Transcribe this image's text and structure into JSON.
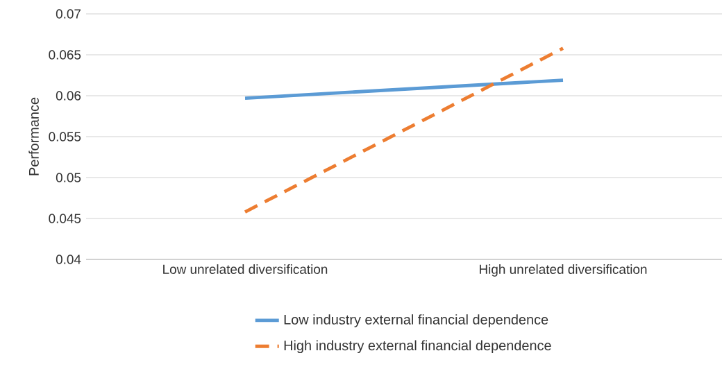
{
  "chart_data": {
    "type": "line",
    "ylabel": "Performance",
    "categories": [
      "Low unrelated diversification",
      "High unrelated diversification"
    ],
    "series": [
      {
        "name": "Low industry external financial dependence",
        "color": "#5b9bd5",
        "line_style": "solid",
        "values": [
          0.0597,
          0.0619
        ]
      },
      {
        "name": "High industry external financial dependence",
        "color": "#ed7d31",
        "line_style": "dashed",
        "values": [
          0.0458,
          0.0658
        ]
      }
    ],
    "ylim": [
      0.04,
      0.07
    ],
    "yticks": [
      0.04,
      0.045,
      0.05,
      0.055,
      0.06,
      0.065,
      0.07
    ],
    "grid": "y",
    "legend": "bottom"
  }
}
